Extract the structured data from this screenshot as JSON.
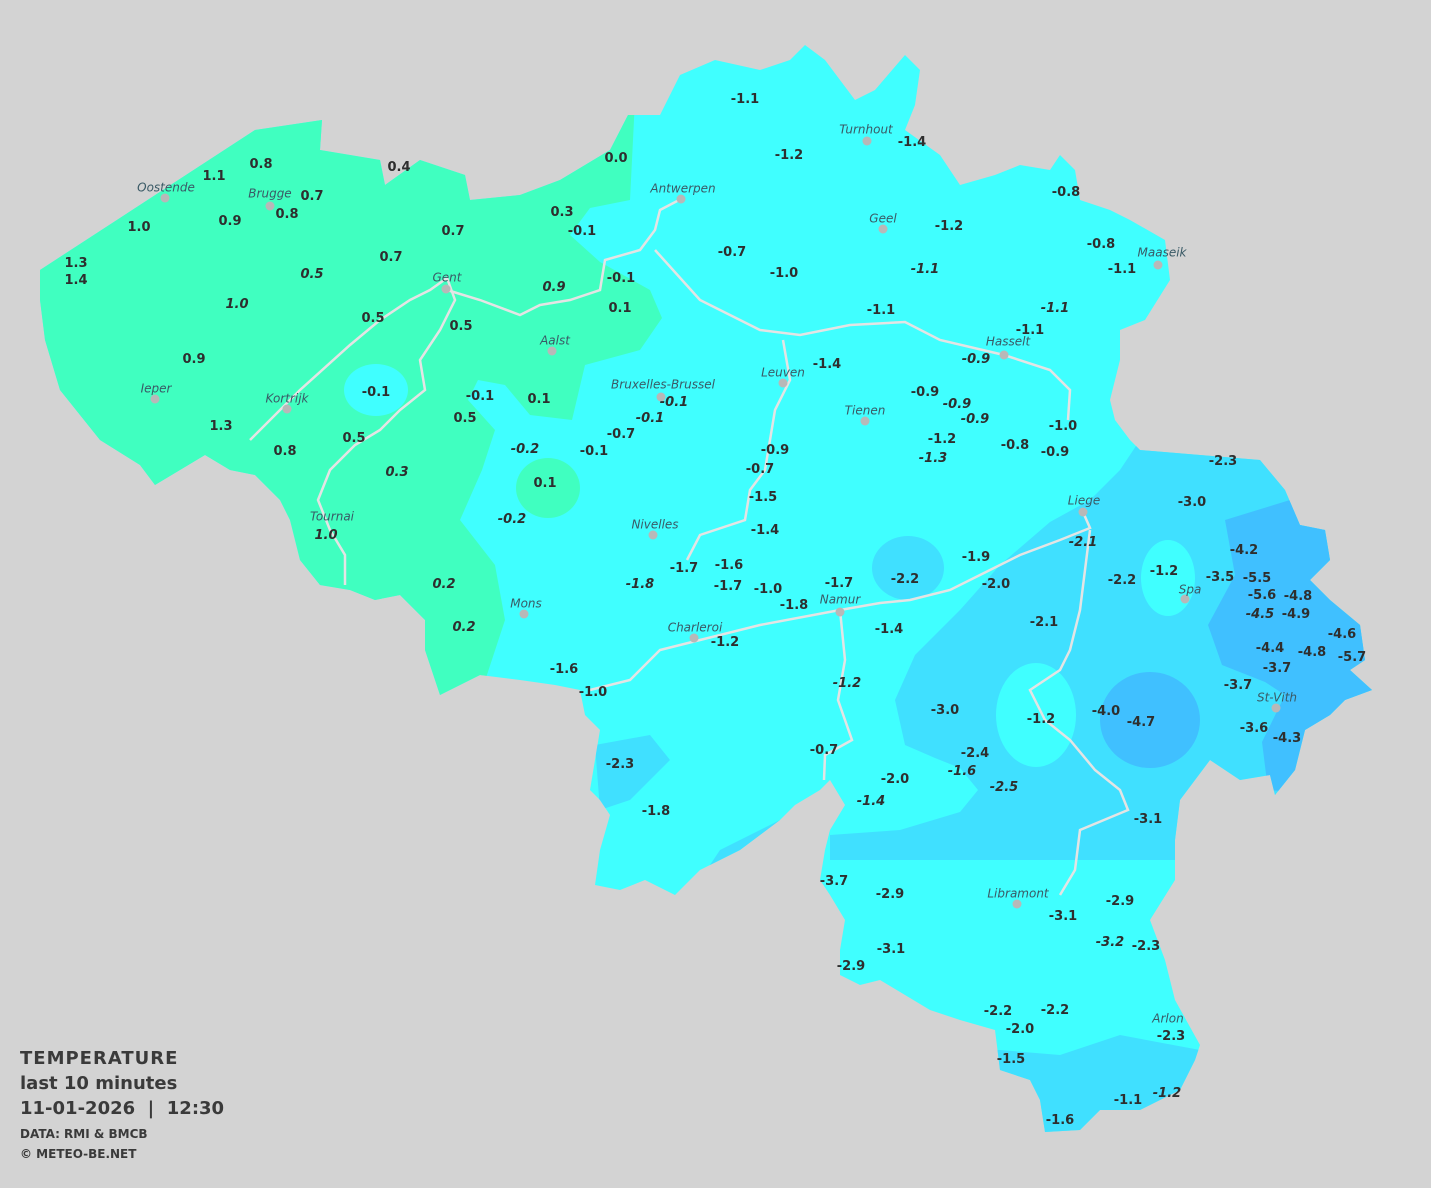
{
  "legend": {
    "title": "TEMPERATURE",
    "period": "last 10 minutes",
    "datetime": "11-01-2026  |  12:30",
    "source": "DATA: RMI & BMCB",
    "copyright": "© METEO-BE.NET"
  },
  "colors": {
    "background": "#d3d3d3",
    "band_0_to_1": "#40ffc0",
    "band_minus2_to_0": "#40ffff",
    "band_minus4_to_minus2": "#40e0ff",
    "band_below_minus4": "#40c0ff",
    "rivers": "#e4e4e4",
    "text": "#2e2e2e"
  },
  "cities": [
    "Oostende",
    "Brugge",
    "Antwerpen",
    "Turnhout",
    "Geel",
    "Maaseik",
    "Gent",
    "Hasselt",
    "Aalst",
    "Leuven",
    "Ieper",
    "Kortrijk",
    "Bruxelles-Brussel",
    "Tienen",
    "Liege",
    "Nivelles",
    "Tournai",
    "Spa",
    "Mons",
    "Namur",
    "Charleroi",
    "St-Vith",
    "Libramont",
    "Arlon"
  ],
  "stations": [
    {
      "v": "0.8"
    },
    {
      "v": "1.1"
    },
    {
      "v": "0.4"
    },
    {
      "v": "0.0"
    },
    {
      "v": "0.7"
    },
    {
      "v": "0.8"
    },
    {
      "v": "1.0"
    },
    {
      "v": "0.9"
    },
    {
      "v": "0.3"
    },
    {
      "v": "-0.1"
    },
    {
      "v": "0.7"
    },
    {
      "v": "1.3"
    },
    {
      "v": "1.4"
    },
    {
      "v": "0.5",
      "i": true
    },
    {
      "v": "0.7"
    },
    {
      "v": "1.0",
      "i": true
    },
    {
      "v": "0.9",
      "i": true
    },
    {
      "v": "-0.1"
    },
    {
      "v": "0.1"
    },
    {
      "v": "0.5"
    },
    {
      "v": "0.5"
    },
    {
      "v": "0.9"
    },
    {
      "v": "-0.1"
    },
    {
      "v": "-0.1"
    },
    {
      "v": "0.1"
    },
    {
      "v": "0.5"
    },
    {
      "v": "1.3"
    },
    {
      "v": "0.8"
    },
    {
      "v": "0.5"
    },
    {
      "v": "0.3",
      "i": true
    },
    {
      "v": "1.0",
      "i": true
    },
    {
      "v": "0.2",
      "i": true
    },
    {
      "v": "0.2",
      "i": true
    },
    {
      "v": "-0.2",
      "i": true
    },
    {
      "v": "0.1"
    },
    {
      "v": "-0.2",
      "i": true
    },
    {
      "v": "-0.1",
      "i": true
    },
    {
      "v": "-0.1",
      "i": true
    },
    {
      "v": "-0.7"
    },
    {
      "v": "-0.1"
    },
    {
      "v": "-1.1"
    },
    {
      "v": "-1.2"
    },
    {
      "v": "-1.4"
    },
    {
      "v": "-0.8"
    },
    {
      "v": "-1.2"
    },
    {
      "v": "-0.7"
    },
    {
      "v": "-1.0"
    },
    {
      "v": "-1.1",
      "i": true
    },
    {
      "v": "-0.8"
    },
    {
      "v": "-1.1"
    },
    {
      "v": "-1.1"
    },
    {
      "v": "-1.1",
      "i": true
    },
    {
      "v": "-1.1"
    },
    {
      "v": "-0.9",
      "i": true
    },
    {
      "v": "-1.4"
    },
    {
      "v": "-0.9"
    },
    {
      "v": "-0.9",
      "i": true
    },
    {
      "v": "-0.9",
      "i": true
    },
    {
      "v": "-1.2"
    },
    {
      "v": "-1.3",
      "i": true
    },
    {
      "v": "-0.8"
    },
    {
      "v": "-1.0"
    },
    {
      "v": "-0.9"
    },
    {
      "v": "-0.9"
    },
    {
      "v": "-0.7"
    },
    {
      "v": "-1.5"
    },
    {
      "v": "-1.4"
    },
    {
      "v": "-1.7"
    },
    {
      "v": "-1.6"
    },
    {
      "v": "-1.8",
      "i": true
    },
    {
      "v": "-1.7"
    },
    {
      "v": "-1.0"
    },
    {
      "v": "-1.8"
    },
    {
      "v": "-1.7"
    },
    {
      "v": "-2.2"
    },
    {
      "v": "-1.9"
    },
    {
      "v": "-2.0"
    },
    {
      "v": "-2.1",
      "i": true
    },
    {
      "v": "-2.3"
    },
    {
      "v": "-3.0"
    },
    {
      "v": "-4.2"
    },
    {
      "v": "-2.2"
    },
    {
      "v": "-1.2"
    },
    {
      "v": "-3.5"
    },
    {
      "v": "-5.5"
    },
    {
      "v": "-5.6"
    },
    {
      "v": "-4.8"
    },
    {
      "v": "-4.5",
      "i": true
    },
    {
      "v": "-4.9"
    },
    {
      "v": "-4.4"
    },
    {
      "v": "-4.8"
    },
    {
      "v": "-4.6"
    },
    {
      "v": "-5.7"
    },
    {
      "v": "-3.7"
    },
    {
      "v": "-3.7"
    },
    {
      "v": "-3.6"
    },
    {
      "v": "-4.3"
    },
    {
      "v": "-4.0"
    },
    {
      "v": "-4.7"
    },
    {
      "v": "-1.2"
    },
    {
      "v": "-2.1"
    },
    {
      "v": "-1.4"
    },
    {
      "v": "-1.2"
    },
    {
      "v": "-1.2",
      "i": true
    },
    {
      "v": "-3.0"
    },
    {
      "v": "-0.7"
    },
    {
      "v": "-2.4"
    },
    {
      "v": "-1.6",
      "i": true
    },
    {
      "v": "-2.0"
    },
    {
      "v": "-2.5",
      "i": true
    },
    {
      "v": "-1.4",
      "i": true
    },
    {
      "v": "-3.1"
    },
    {
      "v": "-1.6"
    },
    {
      "v": "-1.0"
    },
    {
      "v": "-2.3"
    },
    {
      "v": "-1.8"
    },
    {
      "v": "-3.7"
    },
    {
      "v": "-2.9"
    },
    {
      "v": "-3.1"
    },
    {
      "v": "-2.9"
    },
    {
      "v": "-3.1"
    },
    {
      "v": "-3.2",
      "i": true
    },
    {
      "v": "-2.3"
    },
    {
      "v": "-2.9"
    },
    {
      "v": "-2.2"
    },
    {
      "v": "-2.2"
    },
    {
      "v": "-2.0"
    },
    {
      "v": "-2.3"
    },
    {
      "v": "-1.5"
    },
    {
      "v": "-1.1"
    },
    {
      "v": "-1.2",
      "i": true
    },
    {
      "v": "-1.6"
    }
  ]
}
